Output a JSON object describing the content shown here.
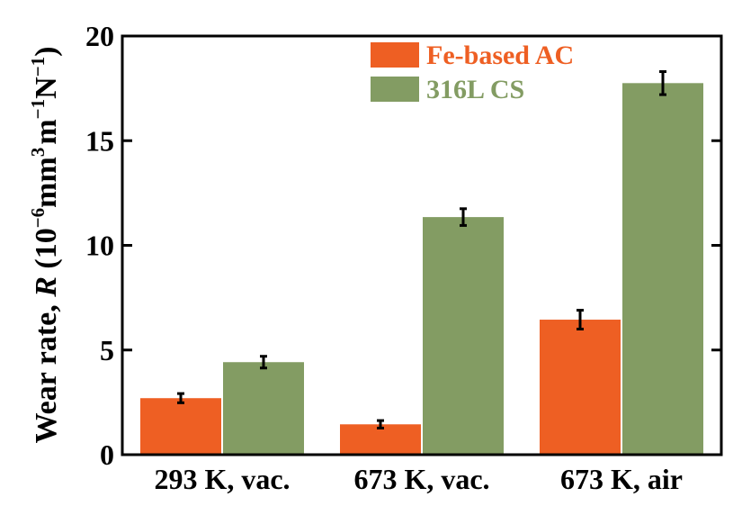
{
  "chart_data": {
    "type": "bar",
    "title": "",
    "xlabel": "",
    "ylabel": {
      "prefix": "Wear rate, ",
      "var": "R",
      "unit_open": " (10",
      "exp1": "−6",
      "unit_mm": "mm",
      "exp2": "3",
      "unit_m": "m",
      "exp3": "−1",
      "unit_N": "N",
      "exp4": "−1",
      "unit_close": ")"
    },
    "ylim": [
      0,
      20
    ],
    "yticks": [
      0,
      5,
      10,
      15,
      20
    ],
    "categories": [
      "293 K, vac.",
      "673 K, vac.",
      "673 K, air"
    ],
    "series": [
      {
        "name": "Fe-based AC",
        "color": "#ee5f23",
        "values": [
          2.7,
          1.45,
          6.45
        ],
        "errors": [
          0.22,
          0.18,
          0.45
        ]
      },
      {
        "name": "316L CS",
        "color": "#839c63",
        "values": [
          4.42,
          11.35,
          17.75
        ],
        "errors": [
          0.28,
          0.4,
          0.55
        ]
      }
    ],
    "legend_position": "top-center",
    "grid": false
  }
}
